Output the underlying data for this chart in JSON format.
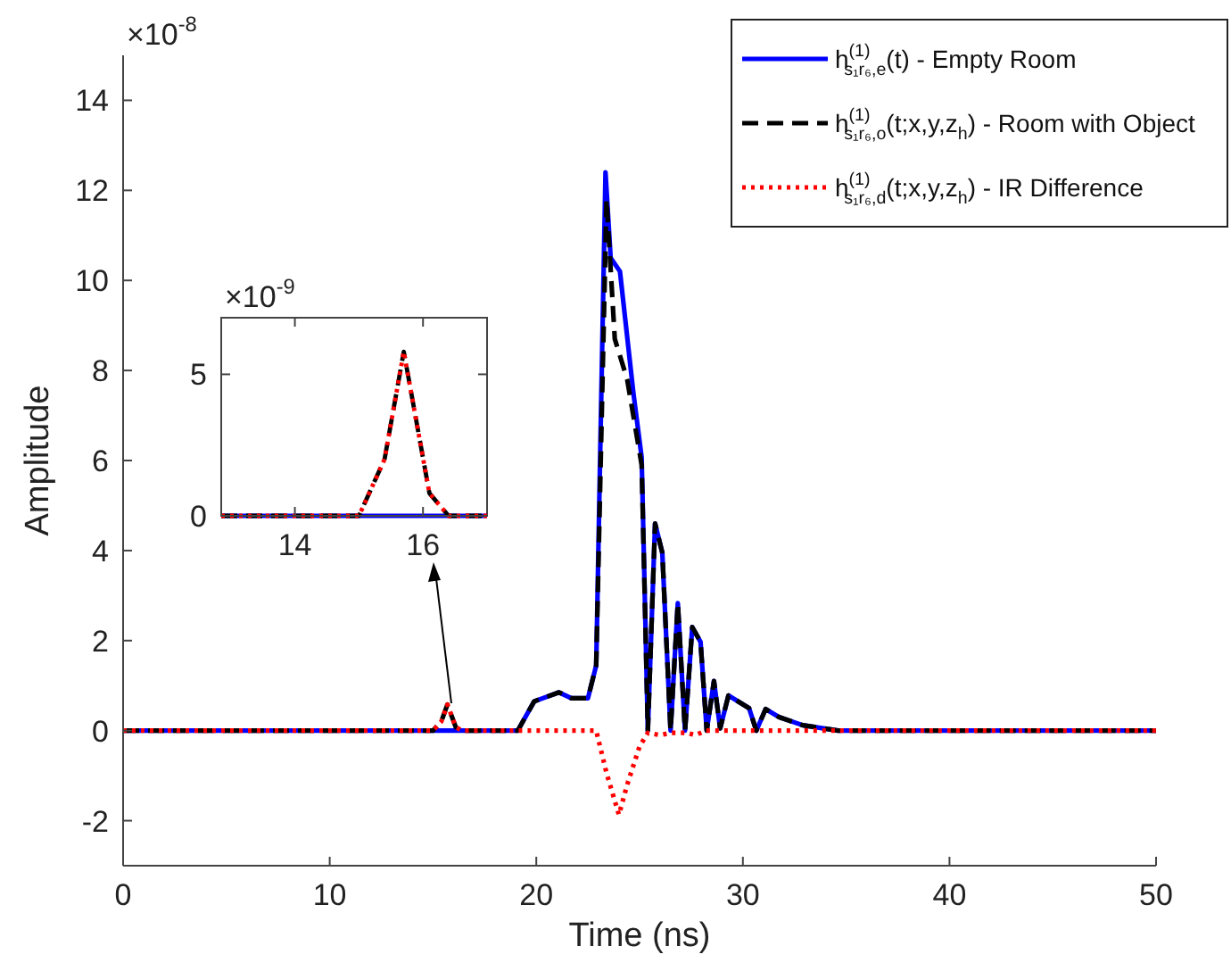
{
  "chart_data": [
    {
      "type": "line",
      "xlabel": "Time (ns)",
      "ylabel": "Amplitude",
      "annotations": [
        "×10$^{-8}$"
      ],
      "xlim": [
        0,
        50
      ],
      "xticks": [
        0,
        10,
        20,
        30,
        40,
        50
      ],
      "ylim": [
        -3,
        15
      ],
      "yticks": [
        -2,
        0,
        2,
        4,
        6,
        8,
        10,
        12,
        14
      ],
      "grid": false,
      "legend": "top right",
      "series": [
        {
          "name": "h$^{(1)}$$_{s₁r₆,e}$(t) - Empty Room",
          "color": "#0000ff",
          "line_style": "solid",
          "x": [
            0,
            19.1,
            19.9,
            21.1,
            21.7,
            22.5,
            22.9,
            23.35,
            23.6,
            24.05,
            24.7,
            25.1,
            25.4,
            25.75,
            26.1,
            26.5,
            26.85,
            27.2,
            27.55,
            27.95,
            28.25,
            28.6,
            28.9,
            29.3,
            30.3,
            30.65,
            31.1,
            31.75,
            32.9,
            34.6,
            50
          ],
          "values": [
            0,
            0,
            0.65,
            0.85,
            0.72,
            0.72,
            1.45,
            12.4,
            10.5,
            10.2,
            7.5,
            6.07,
            0,
            4.6,
            3.95,
            0,
            2.83,
            0,
            2.3,
            1.97,
            0,
            1.1,
            0.05,
            0.78,
            0.5,
            0,
            0.48,
            0.3,
            0.12,
            0,
            0
          ]
        },
        {
          "name": "h$^{(1)}$$_{s₁r₆,o}$(t;x,y,z$_{h}$) - Room with Object",
          "color": "#000000",
          "line_style": "dashed",
          "x": [
            0,
            15,
            15.4,
            15.7,
            16.1,
            16.4,
            19.1,
            19.9,
            21.1,
            21.7,
            22.5,
            22.9,
            23.4,
            23.8,
            24.4,
            25.1,
            25.4,
            25.75,
            26.1,
            26.5,
            26.85,
            27.2,
            27.55,
            27.95,
            28.25,
            28.6,
            28.9,
            29.3,
            30.3,
            30.65,
            31.1,
            31.75,
            32.9,
            34.6,
            50
          ],
          "values": [
            0,
            0,
            0.2,
            0.58,
            0.08,
            0,
            0,
            0.65,
            0.85,
            0.72,
            0.72,
            1.45,
            11.8,
            8.7,
            7.8,
            5.9,
            0,
            4.6,
            3.95,
            0,
            2.83,
            0,
            2.3,
            1.97,
            0,
            1.1,
            0.05,
            0.78,
            0.5,
            0,
            0.48,
            0.3,
            0.12,
            0,
            0
          ]
        },
        {
          "name": "h$^{(1)}$$_{s₁r₆,d}$(t;x,y,z$_{h}$) - IR Difference",
          "color": "#ff0000",
          "line_style": "dotted",
          "x": [
            0,
            15,
            15.4,
            15.7,
            16.1,
            16.4,
            22.9,
            23.4,
            24.0,
            24.4,
            25.0,
            25.4,
            26.0,
            26.5,
            27.3,
            27.7,
            28.2,
            50
          ],
          "values": [
            0,
            0,
            0.2,
            0.58,
            0.08,
            0,
            0,
            -0.94,
            -1.87,
            -1.2,
            -0.35,
            -0.05,
            -0.1,
            -0.05,
            -0.05,
            -0.1,
            0,
            0
          ]
        }
      ]
    },
    {
      "type": "line",
      "annotations": [
        "×10$^{-9}$"
      ],
      "xlim": [
        12.85,
        17
      ],
      "xticks": [
        14,
        16
      ],
      "ylim": [
        0,
        7
      ],
      "yticks": [
        0,
        5
      ],
      "grid": false,
      "series": [
        {
          "color": "#0000ff",
          "line_style": "solid",
          "x": [
            12.85,
            17
          ],
          "values": [
            0,
            0
          ]
        },
        {
          "color": "#000000",
          "line_style": "dashed",
          "x": [
            12.85,
            15,
            15.4,
            15.7,
            16.1,
            16.4,
            17
          ],
          "values": [
            0,
            0,
            2,
            5.8,
            0.8,
            0,
            0
          ]
        },
        {
          "color": "#ff0000",
          "line_style": "dotted",
          "x": [
            12.85,
            15,
            15.4,
            15.7,
            16.1,
            16.4,
            17
          ],
          "values": [
            0,
            0,
            2,
            5.8,
            0.8,
            0,
            0
          ]
        }
      ]
    }
  ]
}
